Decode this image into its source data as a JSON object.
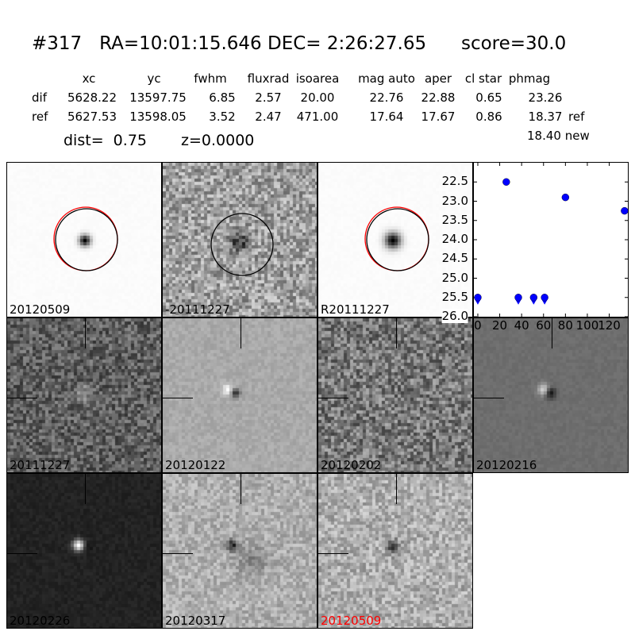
{
  "header": {
    "title": "#317   RA=10:01:15.646 DEC= 2:26:27.65      score=30.0",
    "columns": [
      "xc",
      "yc",
      "fwhm",
      "fluxrad",
      "isoarea",
      "mag auto",
      "aper",
      "cl star",
      "phmag"
    ],
    "rows": [
      {
        "label": "dif",
        "values": [
          "5628.22",
          "13597.75",
          "6.85",
          "2.57",
          "20.00",
          "22.76",
          "22.88",
          "0.65",
          "23.26"
        ],
        "suffix": ""
      },
      {
        "label": "ref",
        "values": [
          "5627.53",
          "13598.05",
          "3.52",
          "2.47",
          "471.00",
          "17.64",
          "17.67",
          "0.86",
          "18.37"
        ],
        "suffix": "ref"
      }
    ],
    "new_phmag": "18.40 new",
    "dist": "dist=  0.75",
    "z": "z=0.0000"
  },
  "stamps": [
    {
      "label": "20120509",
      "label_color": "#000000",
      "circles": [
        "#ff0000",
        "#000000"
      ]
    },
    {
      "label": "-20111227",
      "label_color": "#000000",
      "circles": [
        "#000000"
      ]
    },
    {
      "label": "R20111227",
      "label_color": "#000000",
      "circles": [
        "#ff0000",
        "#000000"
      ]
    },
    {
      "label": "20111227",
      "label_color": "#000000"
    },
    {
      "label": "20120122",
      "label_color": "#000000"
    },
    {
      "label": "20120202",
      "label_color": "#000000"
    },
    {
      "label": "20120216",
      "label_color": "#000000"
    },
    {
      "label": "20120226",
      "label_color": "#000000"
    },
    {
      "label": "20120317",
      "label_color": "#000000"
    },
    {
      "label": "20120509",
      "label_color": "#ff0000"
    }
  ],
  "chart_data": {
    "type": "scatter",
    "x": [
      0,
      26,
      37,
      51,
      61,
      80,
      134
    ],
    "y": [
      25.5,
      22.5,
      25.5,
      25.5,
      25.5,
      22.9,
      23.25
    ],
    "upper_limit": [
      true,
      false,
      true,
      true,
      true,
      false,
      false
    ],
    "xlim": [
      -3.6,
      137
    ],
    "ylim": [
      26.0,
      22.0
    ],
    "y_inverted": true,
    "xticks": [
      "0",
      "20",
      "40",
      "60",
      "80",
      "100",
      "120"
    ],
    "yticks": [
      "22.5",
      "23.0",
      "23.5",
      "24.0",
      "24.5",
      "25.0",
      "25.5",
      "26.0"
    ],
    "marker_color": "#0000ff",
    "grid": false
  }
}
